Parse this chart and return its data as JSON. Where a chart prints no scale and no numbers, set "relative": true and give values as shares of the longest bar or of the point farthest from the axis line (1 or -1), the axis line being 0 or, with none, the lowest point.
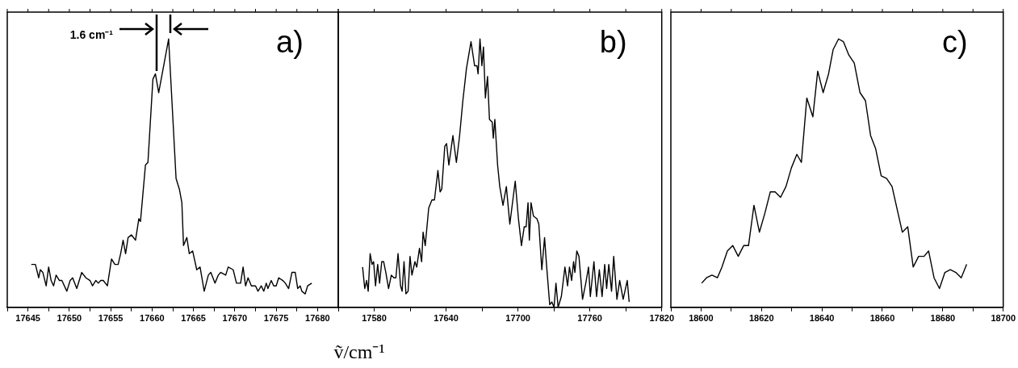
{
  "chart_data": [
    {
      "type": "line",
      "relative": true,
      "marker": "none",
      "line_style": "solid",
      "xlim": [
        17642.5,
        17682.5
      ],
      "xticks": [
        {
          "value": 17642.5,
          "label": null
        },
        17645,
        {
          "value": 17647.5,
          "label": null
        },
        17650,
        {
          "value": 17652.5,
          "label": null
        },
        17655,
        {
          "value": 17657.5,
          "label": null
        },
        17660,
        {
          "value": 17662.5,
          "label": null
        },
        17665,
        {
          "value": 17667.5,
          "label": null
        },
        17670,
        {
          "value": 17672.5,
          "label": null
        },
        17675,
        {
          "value": 17677.5,
          "label": null
        },
        17680,
        {
          "value": 17682.5,
          "label": null
        }
      ],
      "annotations": [
        "a)",
        "1.6 cm⁻¹"
      ],
      "x": [
        17645.4,
        17645.9,
        17646.3,
        17646.5,
        17646.8,
        17647.2,
        17647.5,
        17647.8,
        17648.1,
        17648.4,
        17648.8,
        17649.1,
        17649.7,
        17650.1,
        17650.4,
        17650.9,
        17651.5,
        17652.0,
        17652.5,
        17652.8,
        17653.2,
        17653.5,
        17653.8,
        17654.1,
        17654.6,
        17655.1,
        17655.5,
        17655.9,
        17656.2,
        17656.5,
        17656.8,
        17657.1,
        17657.5,
        17658.0,
        17658.4,
        17658.6,
        17659.2,
        17659.5,
        17660.1,
        17660.4,
        17660.8,
        17662.0,
        17662.9,
        17663.3,
        17663.6,
        17663.8,
        17664.2,
        17664.5,
        17664.9,
        17665.4,
        17665.8,
        17666.3,
        17666.8,
        17667.1,
        17667.6,
        17668.0,
        17668.3,
        17668.9,
        17669.2,
        17669.8,
        17670.2,
        17670.7,
        17671.0,
        17671.3,
        17671.6,
        17672.0,
        17672.5,
        17672.8,
        17673.2,
        17673.5,
        17673.8,
        17674.0,
        17674.4,
        17674.7,
        17675.0,
        17675.3,
        17675.8,
        17676.1,
        17676.5,
        17676.9,
        17677.3,
        17677.6,
        17677.9,
        17678.1,
        17678.5,
        17678.8,
        17679.3
      ],
      "series": [
        {
          "color": "#000000",
          "values": [
            0.16,
            0.16,
            0.11,
            0.14,
            0.13,
            0.08,
            0.15,
            0.1,
            0.08,
            0.12,
            0.1,
            0.1,
            0.06,
            0.1,
            0.11,
            0.07,
            0.13,
            0.11,
            0.1,
            0.08,
            0.1,
            0.09,
            0.1,
            0.1,
            0.08,
            0.18,
            0.16,
            0.16,
            0.2,
            0.25,
            0.2,
            0.26,
            0.27,
            0.25,
            0.33,
            0.32,
            0.53,
            0.54,
            0.85,
            0.87,
            0.8,
            1.0,
            0.48,
            0.44,
            0.39,
            0.23,
            0.26,
            0.2,
            0.21,
            0.14,
            0.15,
            0.06,
            0.12,
            0.13,
            0.09,
            0.12,
            0.13,
            0.12,
            0.15,
            0.14,
            0.09,
            0.09,
            0.15,
            0.08,
            0.11,
            0.08,
            0.08,
            0.06,
            0.08,
            0.06,
            0.09,
            0.07,
            0.1,
            0.08,
            0.08,
            0.11,
            0.1,
            0.09,
            0.07,
            0.13,
            0.13,
            0.07,
            0.08,
            0.06,
            0.05,
            0.08,
            0.09
          ]
        }
      ]
    },
    {
      "type": "line",
      "relative": true,
      "marker": "none",
      "line_style": "solid",
      "xlim": [
        17550,
        17820
      ],
      "xlabel": "ṽ/cm⁻¹",
      "xticks": [
        {
          "value": 17550,
          "label": null
        },
        17580,
        {
          "value": 17610,
          "label": null
        },
        17640,
        {
          "value": 17670,
          "label": null
        },
        17700,
        {
          "value": 17730,
          "label": null
        },
        17760,
        {
          "value": 17790,
          "label": null
        },
        17820
      ],
      "annotations": [
        "b)"
      ],
      "x": [
        17570.3,
        17572.1,
        17573.7,
        17575.0,
        17576.6,
        17578.2,
        17579.5,
        17581.1,
        17582.9,
        17584.5,
        17586.3,
        17587.9,
        17589.7,
        17592.0,
        17594.3,
        17596.5,
        17598.1,
        17599.9,
        17602.0,
        17603.3,
        17604.9,
        17606.5,
        17608.3,
        17609.9,
        17611.5,
        17614.0,
        17615.5,
        17617.8,
        17619.6,
        17620.8,
        17622.6,
        17625.5,
        17628.2,
        17630.3,
        17633.2,
        17635.0,
        17636.4,
        17638.9,
        17640.4,
        17642.3,
        17645.7,
        17648.6,
        17651.3,
        17654.0,
        17657.0,
        17660.8,
        17663.8,
        17665.8,
        17666.7,
        17668.3,
        17669.9,
        17671.2,
        17672.8,
        17674.6,
        17676.2,
        17678.5,
        17679.4,
        17680.7,
        17683.0,
        17684.8,
        17687.5,
        17690.3,
        17693.2,
        17697.7,
        17700.4,
        17702.9,
        17705.2,
        17706.8,
        17708.4,
        17709.5,
        17710.9,
        17712.9,
        17715.8,
        17717.4,
        17719.9,
        17722.2,
        17723.8,
        17726.5,
        17728.3,
        17730.1,
        17731.7,
        17733.5,
        17736.2,
        17739.2,
        17741.4,
        17743.0,
        17744.8,
        17746.4,
        17747.5,
        17749.1,
        17750.9,
        17753.9,
        17756.6,
        17758.9,
        17760.4,
        17763.4,
        17765.6,
        17767.9,
        17770.2,
        17772.4,
        17774.0,
        17775.8,
        17778.1,
        17779.9,
        17782.6,
        17784.9,
        17787.8,
        17791.2,
        17792.8
      ],
      "series": [
        {
          "color": "#000000",
          "values": [
            0.15,
            0.07,
            0.1,
            0.06,
            0.2,
            0.16,
            0.17,
            0.08,
            0.16,
            0.09,
            0.17,
            0.17,
            0.13,
            0.07,
            0.12,
            0.11,
            0.11,
            0.2,
            0.08,
            0.06,
            0.17,
            0.05,
            0.06,
            0.19,
            0.12,
            0.17,
            0.15,
            0.22,
            0.17,
            0.28,
            0.23,
            0.37,
            0.4,
            0.4,
            0.51,
            0.43,
            0.44,
            0.6,
            0.61,
            0.53,
            0.64,
            0.54,
            0.64,
            0.77,
            0.89,
            0.99,
            0.9,
            0.9,
            0.87,
            1.0,
            0.9,
            0.97,
            0.78,
            0.86,
            0.7,
            0.69,
            0.63,
            0.7,
            0.53,
            0.45,
            0.38,
            0.45,
            0.31,
            0.47,
            0.33,
            0.23,
            0.3,
            0.3,
            0.39,
            0.25,
            0.39,
            0.34,
            0.33,
            0.31,
            0.14,
            0.26,
            0.16,
            0.01,
            0.02,
            0.0,
            0.09,
            0.0,
            0.04,
            0.15,
            0.08,
            0.15,
            0.1,
            0.17,
            0.13,
            0.21,
            0.19,
            0.03,
            0.09,
            0.15,
            0.04,
            0.17,
            0.04,
            0.14,
            0.04,
            0.16,
            0.07,
            0.16,
            0.06,
            0.19,
            0.03,
            0.1,
            0.03,
            0.1,
            0.02
          ]
        }
      ]
    },
    {
      "type": "line",
      "relative": true,
      "marker": "none",
      "line_style": "solid",
      "xlim": [
        18590,
        18700
      ],
      "xticks": [
        {
          "value": 18590,
          "label": null
        },
        18600,
        {
          "value": 18610,
          "label": null
        },
        18620,
        {
          "value": 18630,
          "label": null
        },
        18640,
        {
          "value": 18650,
          "label": null
        },
        18660,
        {
          "value": 18670,
          "label": null
        },
        18680,
        {
          "value": 18690,
          "label": null
        },
        18700
      ],
      "annotations": [
        "c)"
      ],
      "x": [
        18600.2,
        18601.8,
        18603.6,
        18605.4,
        18606.9,
        18608.7,
        18610.5,
        18612.3,
        18614.1,
        18615.7,
        18617.5,
        18619.3,
        18621.1,
        18622.9,
        18624.5,
        18626.3,
        18628.1,
        18629.9,
        18631.7,
        18633.2,
        18635.0,
        18637.0,
        18638.6,
        18640.4,
        18642.2,
        18643.7,
        18645.5,
        18647.1,
        18648.9,
        18650.7,
        18652.6,
        18654.4,
        18656.1,
        18657.8,
        18659.6,
        18661.4,
        18663.2,
        18665.0,
        18666.6,
        18668.4,
        18670.2,
        18672.0,
        18673.8,
        18675.3,
        18677.1,
        18678.9,
        18680.7,
        18682.5,
        18684.3,
        18686.1,
        18687.9
      ],
      "series": [
        {
          "color": "#000000",
          "values": [
            0.09,
            0.11,
            0.12,
            0.11,
            0.15,
            0.21,
            0.23,
            0.19,
            0.23,
            0.23,
            0.38,
            0.28,
            0.35,
            0.43,
            0.43,
            0.41,
            0.45,
            0.52,
            0.57,
            0.54,
            0.78,
            0.71,
            0.88,
            0.8,
            0.87,
            0.96,
            1.0,
            0.99,
            0.94,
            0.91,
            0.8,
            0.77,
            0.64,
            0.59,
            0.49,
            0.48,
            0.45,
            0.36,
            0.28,
            0.3,
            0.15,
            0.19,
            0.19,
            0.21,
            0.11,
            0.07,
            0.13,
            0.14,
            0.13,
            0.11,
            0.16
          ]
        }
      ]
    }
  ]
}
